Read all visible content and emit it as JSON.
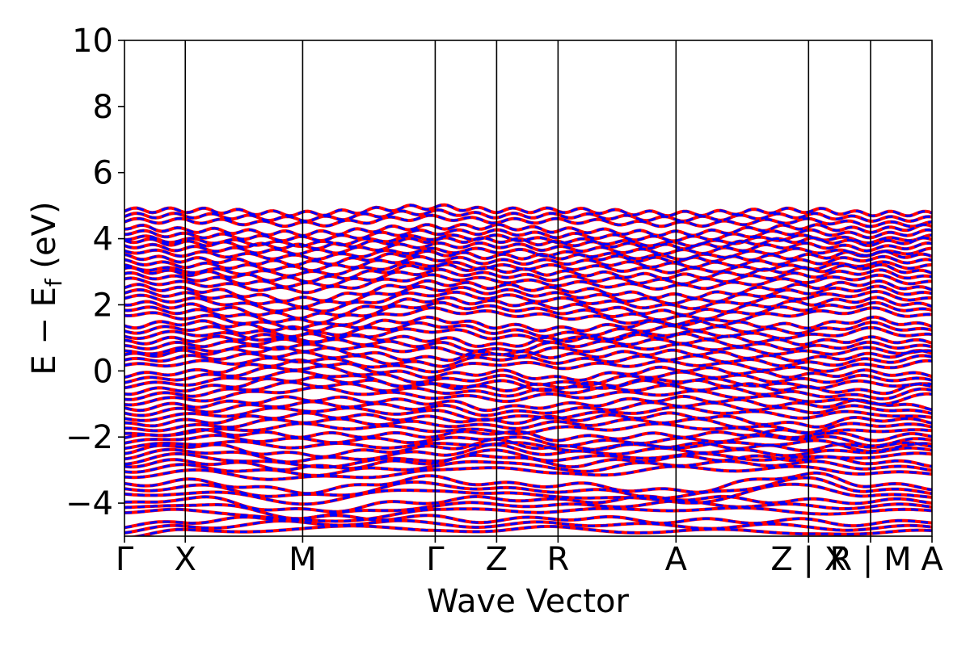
{
  "chart_data": {
    "type": "line",
    "title": "",
    "xlabel": "Wave Vector",
    "ylabel": "E − E",
    "ylabel_subscript": "f",
    "ylabel_unit": " (eV)",
    "ylim": [
      -5,
      10
    ],
    "y_ticks": [
      -4,
      -2,
      0,
      2,
      4,
      6,
      8,
      10
    ],
    "y_tick_labels": [
      "−4",
      "−2",
      "0",
      "2",
      "4",
      "6",
      "8",
      "10"
    ],
    "x_ticks": [
      {
        "label": "Γ",
        "x": 0
      },
      {
        "label": "X",
        "x": 1
      },
      {
        "label": "M",
        "x": 2.93
      },
      {
        "label": "Γ",
        "x": 5.11
      },
      {
        "label": "Z",
        "x": 6.12
      },
      {
        "label": "R",
        "x": 7.13
      },
      {
        "label": "A",
        "x": 9.07
      },
      {
        "label": "Z | X",
        "x": 11.25
      },
      {
        "label": "R | M",
        "x": 12.27
      },
      {
        "label": "A",
        "x": 13.28
      }
    ],
    "xlim": [
      0,
      13.28
    ],
    "grid": false,
    "series": [
      {
        "style": "solid",
        "color": "#ff0000"
      },
      {
        "style": "dashed",
        "color": "#0000ff"
      }
    ],
    "bands_approx": [
      [
        -4.9,
        -4.7,
        -4.6,
        -4.6,
        -4.7,
        -4.6,
        -4.7,
        -4.7,
        -4.8,
        -4.7
      ],
      [
        -4.2,
        -4.0,
        -4.4,
        -4.1,
        -4.0,
        -4.1,
        -4.0,
        -4.1,
        -4.1,
        -4.1
      ],
      [
        -3.6,
        -3.5,
        -3.8,
        -3.4,
        -3.6,
        -3.6,
        -3.8,
        -3.3,
        -3.6,
        -3.7
      ],
      [
        -3.0,
        -2.9,
        -3.1,
        -2.9,
        -2.7,
        -3.0,
        -2.8,
        -2.8,
        -2.9,
        -3.0
      ],
      [
        -2.6,
        -2.4,
        -2.7,
        -2.5,
        -2.3,
        -2.5,
        -2.4,
        -2.5,
        -2.4,
        -2.4
      ],
      [
        -2.2,
        -2.0,
        -2.1,
        -2.1,
        -2.0,
        -2.2,
        -2.1,
        -2.0,
        -2.2,
        -2.1
      ],
      [
        -1.8,
        -1.7,
        -1.5,
        -1.6,
        -1.7,
        -1.6,
        -1.5,
        -1.8,
        -1.6,
        -1.7
      ],
      [
        -1.3,
        -1.2,
        -1.0,
        -1.1,
        -1.3,
        -1.2,
        -1.0,
        -1.2,
        -1.1,
        -1.3
      ],
      [
        -0.8,
        -0.7,
        -0.4,
        -0.6,
        -0.7,
        -0.6,
        -0.5,
        -0.7,
        -0.8,
        -0.6
      ],
      [
        -0.3,
        -0.2,
        0.1,
        -0.3,
        -0.2,
        -0.4,
        -0.1,
        -0.3,
        -0.2,
        -0.3
      ],
      [
        0.3,
        0.4,
        0.5,
        0.2,
        0.4,
        0.3,
        0.4,
        0.2,
        0.3,
        0.4
      ],
      [
        0.7,
        0.8,
        0.9,
        0.8,
        0.6,
        0.8,
        0.9,
        0.7,
        0.8,
        0.7
      ],
      [
        1.2,
        1.3,
        1.1,
        1.4,
        1.2,
        1.1,
        1.3,
        1.2,
        1.4,
        1.2
      ],
      [
        1.9,
        1.8,
        1.5,
        2.0,
        1.9,
        1.8,
        1.6,
        1.9,
        2.0,
        1.8
      ],
      [
        2.4,
        2.3,
        2.0,
        2.5,
        2.4,
        2.3,
        2.1,
        2.4,
        2.5,
        2.3
      ],
      [
        2.9,
        2.8,
        2.6,
        3.0,
        2.9,
        2.8,
        2.7,
        2.9,
        3.0,
        2.8
      ],
      [
        3.3,
        3.2,
        3.1,
        3.4,
        3.3,
        3.3,
        3.2,
        3.3,
        3.4,
        3.3
      ],
      [
        3.8,
        3.7,
        3.6,
        3.8,
        3.8,
        3.7,
        3.6,
        3.8,
        3.7,
        3.8
      ],
      [
        4.2,
        4.1,
        4.0,
        4.2,
        4.2,
        4.1,
        4.0,
        4.2,
        4.1,
        4.2
      ],
      [
        4.7,
        4.7,
        4.6,
        4.8,
        4.7,
        4.7,
        4.6,
        4.7,
        4.6,
        4.6
      ]
    ]
  }
}
